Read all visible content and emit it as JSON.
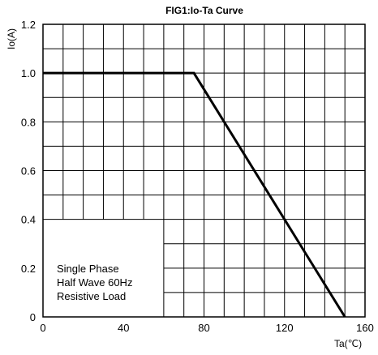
{
  "chart_data": {
    "type": "line",
    "title": "FIG1:Io-Ta Curve",
    "xlabel": "Ta(℃)",
    "ylabel": "Io(A)",
    "xlim": [
      0,
      160
    ],
    "ylim": [
      0,
      1.2
    ],
    "x_ticks": [
      "0",
      "40",
      "80",
      "120",
      "160"
    ],
    "y_ticks": [
      "0",
      "0.2",
      "0.4",
      "0.6",
      "0.8",
      "1.0",
      "1.2"
    ],
    "grid": true,
    "series": [
      {
        "x": [
          0,
          75,
          150
        ],
        "y": [
          1.0,
          1.0,
          0
        ]
      }
    ],
    "annotation": [
      "Single Phase",
      "Half Wave 60Hz",
      "Resistive Load"
    ],
    "colors": {
      "line": "#000000",
      "grid": "#000000"
    }
  }
}
